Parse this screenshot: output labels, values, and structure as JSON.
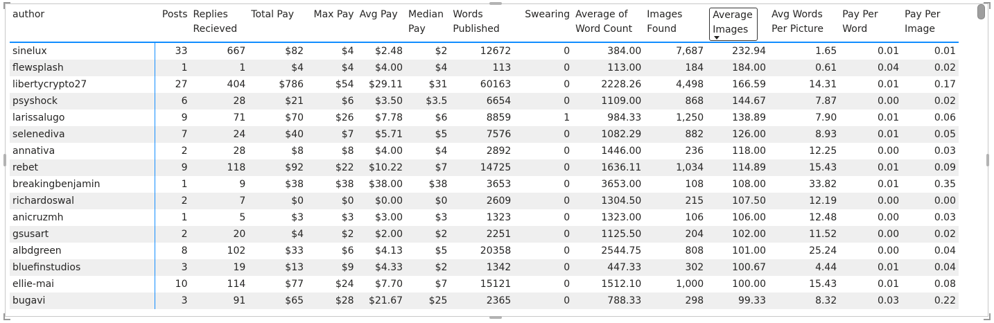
{
  "table": {
    "columns": [
      "author",
      "Posts",
      "Replies Recieved",
      "Total Pay",
      "Max Pay",
      "Avg Pay",
      "Median Pay",
      "Words Published",
      "Swearing",
      "Average of Word Count",
      "Images Found",
      "Average Images",
      "Avg Words Per Picture",
      "Pay Per Word",
      "Pay Per Image"
    ],
    "sorted_column": "Average Images",
    "sort_direction": "descending",
    "rows": [
      [
        "sinelux",
        "33",
        "667",
        "$82",
        "$4",
        "$2.48",
        "$2",
        "12672",
        "0",
        "384.00",
        "7,687",
        "232.94",
        "1.65",
        "0.01",
        "0.01"
      ],
      [
        "flewsplash",
        "1",
        "1",
        "$4",
        "$4",
        "$4.00",
        "$4",
        "113",
        "0",
        "113.00",
        "184",
        "184.00",
        "0.61",
        "0.04",
        "0.02"
      ],
      [
        "libertycrypto27",
        "27",
        "404",
        "$786",
        "$54",
        "$29.11",
        "$31",
        "60163",
        "0",
        "2228.26",
        "4,498",
        "166.59",
        "14.31",
        "0.01",
        "0.17"
      ],
      [
        "psyshock",
        "6",
        "28",
        "$21",
        "$6",
        "$3.50",
        "$3.5",
        "6654",
        "0",
        "1109.00",
        "868",
        "144.67",
        "7.87",
        "0.00",
        "0.02"
      ],
      [
        "larissalugo",
        "9",
        "71",
        "$70",
        "$26",
        "$7.78",
        "$6",
        "8859",
        "1",
        "984.33",
        "1,250",
        "138.89",
        "7.90",
        "0.01",
        "0.06"
      ],
      [
        "selenediva",
        "7",
        "24",
        "$40",
        "$7",
        "$5.71",
        "$5",
        "7576",
        "0",
        "1082.29",
        "882",
        "126.00",
        "8.93",
        "0.01",
        "0.05"
      ],
      [
        "annativa",
        "2",
        "28",
        "$8",
        "$8",
        "$4.00",
        "$4",
        "2892",
        "0",
        "1446.00",
        "236",
        "118.00",
        "12.25",
        "0.00",
        "0.03"
      ],
      [
        "rebet",
        "9",
        "118",
        "$92",
        "$22",
        "$10.22",
        "$7",
        "14725",
        "0",
        "1636.11",
        "1,034",
        "114.89",
        "15.43",
        "0.01",
        "0.09"
      ],
      [
        "breakingbenjamin",
        "1",
        "9",
        "$38",
        "$38",
        "$38.00",
        "$38",
        "3653",
        "0",
        "3653.00",
        "108",
        "108.00",
        "33.82",
        "0.01",
        "0.35"
      ],
      [
        "richardoswal",
        "2",
        "7",
        "$0",
        "$0",
        "$0.00",
        "$0",
        "2609",
        "0",
        "1304.50",
        "215",
        "107.50",
        "12.19",
        "0.00",
        "0.00"
      ],
      [
        "anicruzmh",
        "1",
        "5",
        "$3",
        "$3",
        "$3.00",
        "$3",
        "1323",
        "0",
        "1323.00",
        "106",
        "106.00",
        "12.48",
        "0.00",
        "0.03"
      ],
      [
        "gsusart",
        "2",
        "20",
        "$4",
        "$2",
        "$2.00",
        "$2",
        "2251",
        "0",
        "1125.50",
        "204",
        "102.00",
        "11.52",
        "0.00",
        "0.02"
      ],
      [
        "albdgreen",
        "8",
        "102",
        "$33",
        "$6",
        "$4.13",
        "$5",
        "20358",
        "0",
        "2544.75",
        "808",
        "101.00",
        "25.24",
        "0.00",
        "0.04"
      ],
      [
        "bluefinstudios",
        "3",
        "19",
        "$13",
        "$9",
        "$4.33",
        "$2",
        "1342",
        "0",
        "447.33",
        "302",
        "100.67",
        "4.44",
        "0.01",
        "0.04"
      ],
      [
        "ellie-mai",
        "10",
        "114",
        "$77",
        "$24",
        "$7.70",
        "$7",
        "15121",
        "0",
        "1512.10",
        "1,000",
        "100.00",
        "15.43",
        "0.01",
        "0.08"
      ],
      [
        "bugavi",
        "3",
        "91",
        "$65",
        "$28",
        "$21.67",
        "$25",
        "2365",
        "0",
        "788.33",
        "298",
        "99.33",
        "8.32",
        "0.03",
        "0.22"
      ]
    ]
  },
  "colors": {
    "accent": "#118dff",
    "band": "#efefef"
  }
}
